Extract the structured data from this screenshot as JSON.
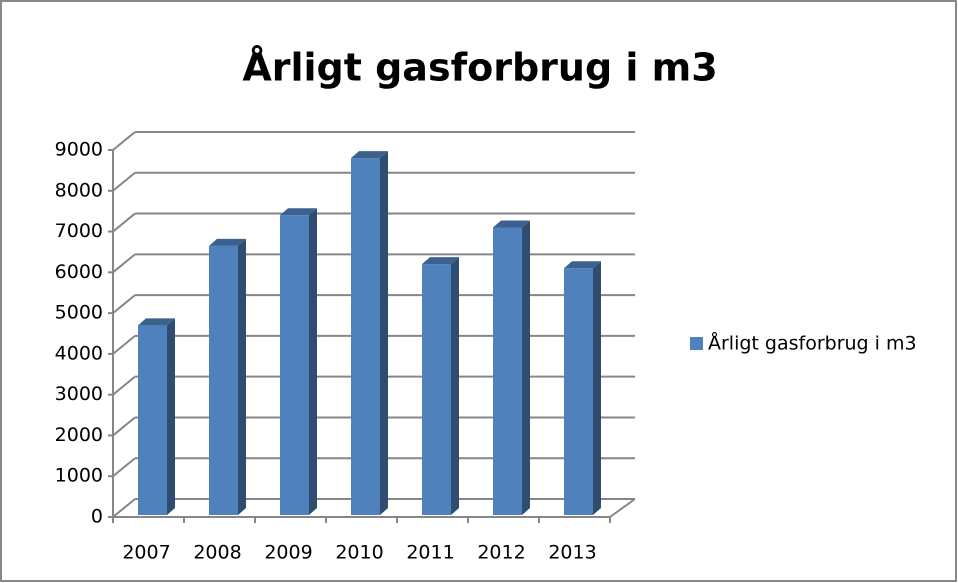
{
  "chart_data": {
    "type": "bar3d",
    "title": "Årligt gasforbrug  i m3",
    "categories": [
      "2007",
      "2008",
      "2009",
      "2010",
      "2011",
      "2012",
      "2013"
    ],
    "series": [
      {
        "name": "Årligt gasforbrug i m3",
        "color": "#4f81bd",
        "values": [
          4700,
          6650,
          7400,
          8800,
          6200,
          7100,
          6100
        ]
      }
    ],
    "ylim": [
      0,
      9000
    ],
    "yticks": [
      0,
      1000,
      2000,
      3000,
      4000,
      5000,
      6000,
      7000,
      8000,
      9000
    ],
    "grid": true,
    "legend": "right"
  }
}
